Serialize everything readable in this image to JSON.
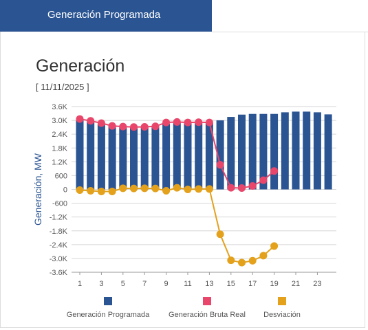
{
  "tab": {
    "label": "Generación Programada"
  },
  "chart_data": {
    "type": "bar+line",
    "title": "Generación",
    "subtitle": "[ 11/11/2025 ]",
    "ylabel": "Generación, MW",
    "xlabel": "",
    "ylim": [
      -3600,
      3600
    ],
    "y_ticks": [
      -3600,
      -3000,
      -2400,
      -1800,
      -1200,
      -600,
      0,
      600,
      1200,
      1800,
      2400,
      3000,
      3600
    ],
    "y_tick_labels": [
      "-3.6K",
      "-3.0K",
      "-2.4K",
      "-1.8K",
      "-1.2K",
      "-600",
      "0",
      "600",
      "1.2K",
      "1.8K",
      "2.4K",
      "3.0K",
      "3.6K"
    ],
    "x": [
      1,
      2,
      3,
      4,
      5,
      6,
      7,
      8,
      9,
      10,
      11,
      12,
      13,
      14,
      15,
      16,
      17,
      18,
      19,
      20,
      21,
      22,
      23,
      24
    ],
    "x_tick_labels": [
      "1",
      "3",
      "5",
      "7",
      "9",
      "11",
      "13",
      "15",
      "17",
      "19",
      "21",
      "23"
    ],
    "x_tick_values": [
      1,
      3,
      5,
      7,
      9,
      11,
      13,
      15,
      17,
      19,
      21,
      23
    ],
    "grid": true,
    "legend_position": "bottom",
    "series": [
      {
        "name": "Generación Programada",
        "type": "bar",
        "color": "#2a5492",
        "values": [
          3000,
          2950,
          2850,
          2750,
          2720,
          2700,
          2700,
          2720,
          2850,
          2920,
          2900,
          2900,
          2880,
          3000,
          3150,
          3250,
          3280,
          3280,
          3280,
          3350,
          3380,
          3380,
          3350,
          3260
        ]
      },
      {
        "name": "Generación Bruta Real",
        "type": "line",
        "color": "#e8476b",
        "values": [
          3060,
          2980,
          2880,
          2760,
          2730,
          2710,
          2720,
          2740,
          2910,
          2930,
          2910,
          2920,
          2910,
          1070,
          70,
          60,
          150,
          400,
          800,
          null,
          null,
          null,
          null,
          null
        ]
      },
      {
        "name": "Desviación",
        "type": "line",
        "color": "#e3a11c",
        "values": [
          -30,
          -60,
          -90,
          -90,
          50,
          40,
          50,
          40,
          -60,
          70,
          0,
          20,
          20,
          -1950,
          -3080,
          -3180,
          -3100,
          -2880,
          -2460,
          null,
          null,
          null,
          null,
          null
        ]
      }
    ]
  }
}
